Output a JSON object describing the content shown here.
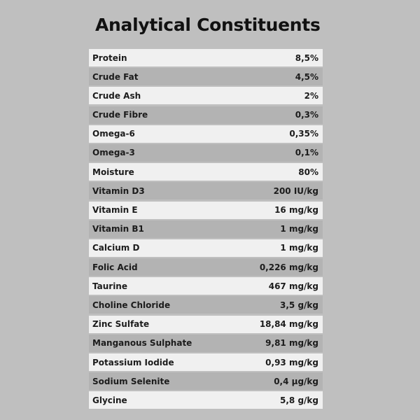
{
  "title": "Analytical Constituents",
  "colors": {
    "background": "#bfbfbf",
    "row_light": "#f0f0f0",
    "row_dark": "#b3b3b3",
    "text": "#1c1c1c"
  },
  "rows": [
    {
      "name": "Protein",
      "value": "8,5%"
    },
    {
      "name": "Crude Fat",
      "value": "4,5%"
    },
    {
      "name": "Crude Ash",
      "value": "2%"
    },
    {
      "name": "Crude Fibre",
      "value": "0,3%"
    },
    {
      "name": "Omega-6",
      "value": "0,35%"
    },
    {
      "name": "Omega-3",
      "value": "0,1%"
    },
    {
      "name": "Moisture",
      "value": "80%"
    },
    {
      "name": "Vitamin D3",
      "value": "200 IU/kg"
    },
    {
      "name": "Vitamin E",
      "value": "16 mg/kg"
    },
    {
      "name": "Vitamin B1",
      "value": "1 mg/kg"
    },
    {
      "name": "Calcium D",
      "value": "1 mg/kg"
    },
    {
      "name": "Folic Acid",
      "value": "0,226 mg/kg"
    },
    {
      "name": "Taurine",
      "value": "467 mg/kg"
    },
    {
      "name": "Choline Chloride",
      "value": "3,5 g/kg"
    },
    {
      "name": "Zinc Sulfate",
      "value": "18,84 mg/kg"
    },
    {
      "name": "Manganous Sulphate",
      "value": "9,81 mg/kg"
    },
    {
      "name": "Potassium Iodide",
      "value": "0,93 mg/kg"
    },
    {
      "name": "Sodium Selenite",
      "value": "0,4 µg/kg"
    },
    {
      "name": "Glycine",
      "value": "5,8 g/kg"
    }
  ]
}
